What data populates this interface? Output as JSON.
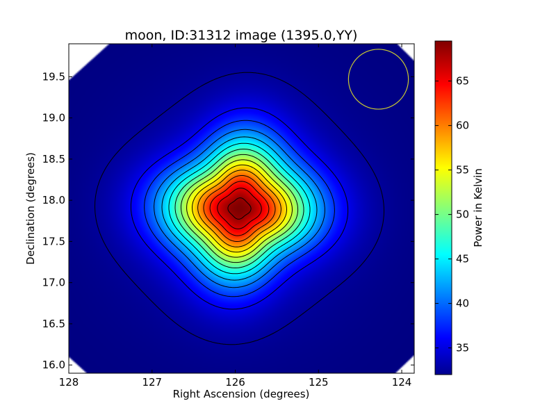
{
  "chart_data": {
    "type": "heatmap",
    "title": "moon, ID:31312 image (1395.0,YY)",
    "xlabel": "Right Ascension (degrees)",
    "ylabel": "Declination (degrees)",
    "colorbar_label": "Power in Kelvin",
    "x_inverted": true,
    "xlim": [
      128.0,
      123.85
    ],
    "ylim": [
      15.9,
      19.9
    ],
    "x_ticks": [
      128,
      127,
      126,
      125,
      124
    ],
    "y_ticks": [
      16.0,
      16.5,
      17.0,
      17.5,
      18.0,
      18.5,
      19.0,
      19.5
    ],
    "x_tick_labels": [
      "128",
      "127",
      "126",
      "125",
      "124"
    ],
    "y_tick_labels": [
      "16.0",
      "16.5",
      "17.0",
      "17.5",
      "18.0",
      "18.5",
      "19.0",
      "19.5"
    ],
    "colorbar_range": [
      32,
      69.5
    ],
    "colorbar_ticks": [
      35,
      40,
      45,
      50,
      55,
      60,
      65
    ],
    "colorbar_tick_labels": [
      "35",
      "40",
      "45",
      "50",
      "55",
      "60",
      "65"
    ],
    "colormap": "jet",
    "source": {
      "ra": 125.95,
      "dec": 17.9,
      "peak": 69.5,
      "background": 32
    },
    "contour_levels": [
      33,
      36,
      38.5,
      41,
      43.5,
      46,
      48.5,
      51,
      53.5,
      56,
      58.5,
      61,
      63.5,
      66,
      68.5
    ],
    "beam_circle": {
      "ra": 124.28,
      "dec": 19.47,
      "radius_deg": 0.36,
      "color": "#c8c832"
    },
    "blank_corners": true
  }
}
